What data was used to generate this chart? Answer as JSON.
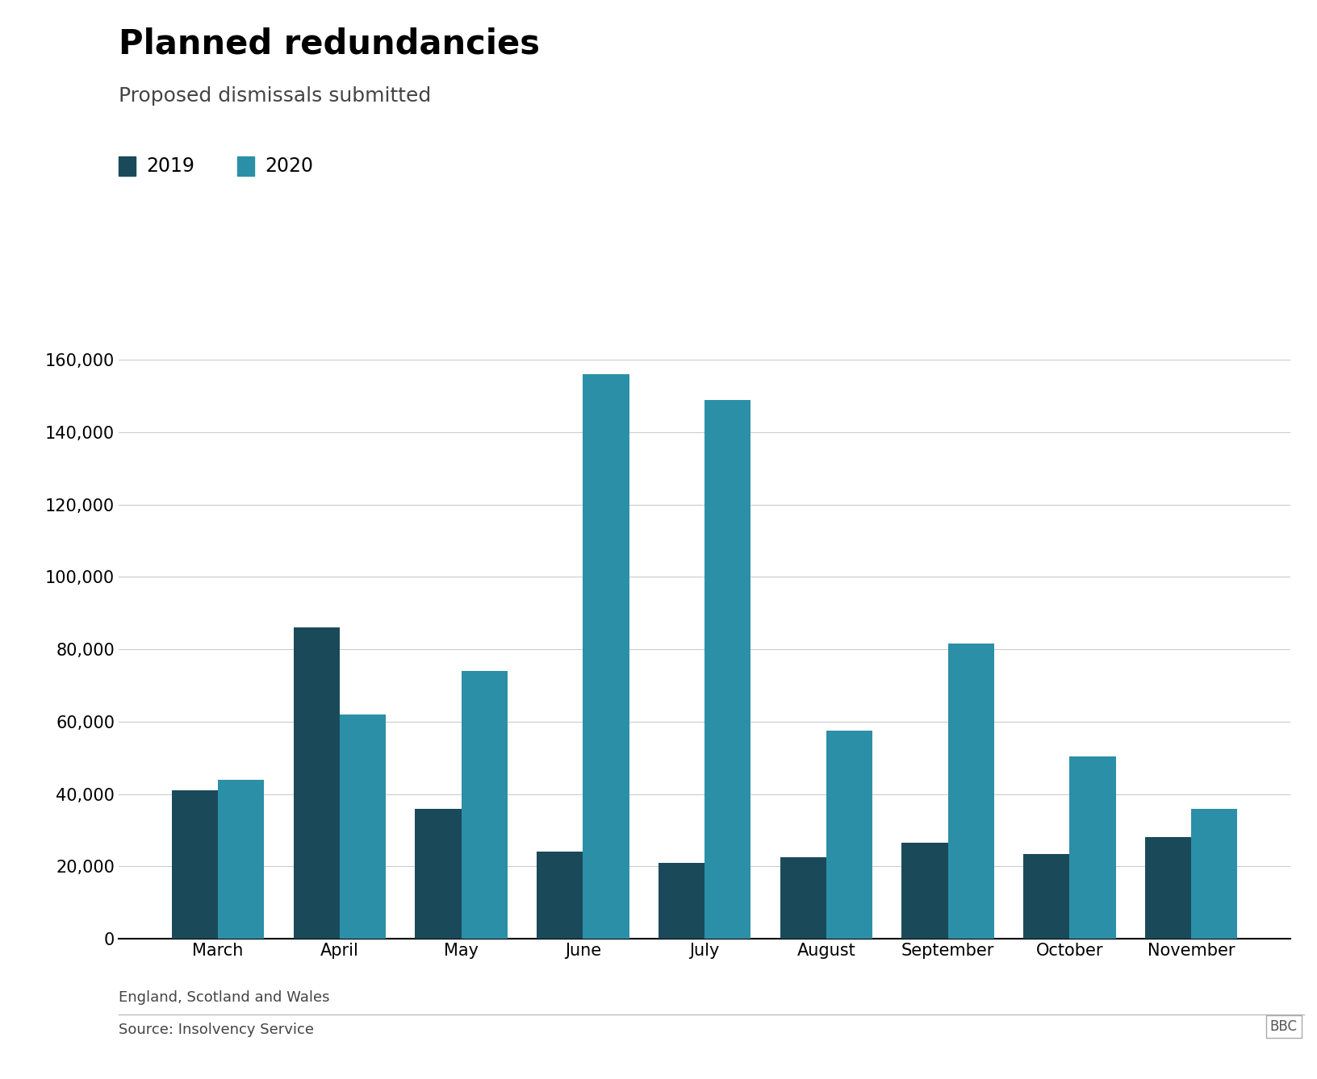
{
  "title": "Planned redundancies",
  "subtitle": "Proposed dismissals submitted",
  "footnote": "England, Scotland and Wales",
  "source": "Source: Insolvency Service",
  "months": [
    "March",
    "April",
    "May",
    "June",
    "July",
    "August",
    "September",
    "October",
    "November"
  ],
  "values_2019": [
    41000,
    86000,
    36000,
    24000,
    21000,
    22500,
    26500,
    23500,
    28000
  ],
  "values_2020": [
    44000,
    62000,
    74000,
    156000,
    149000,
    57500,
    81500,
    50500,
    36000
  ],
  "color_2019": "#1a4a5a",
  "color_2020": "#2c8fa8",
  "legend_labels": [
    "2019",
    "2020"
  ],
  "ylim": [
    0,
    170000
  ],
  "yticks": [
    0,
    20000,
    40000,
    60000,
    80000,
    100000,
    120000,
    140000,
    160000
  ],
  "background_color": "#ffffff",
  "title_fontsize": 30,
  "subtitle_fontsize": 18,
  "tick_fontsize": 15,
  "legend_fontsize": 17,
  "bar_width": 0.38
}
